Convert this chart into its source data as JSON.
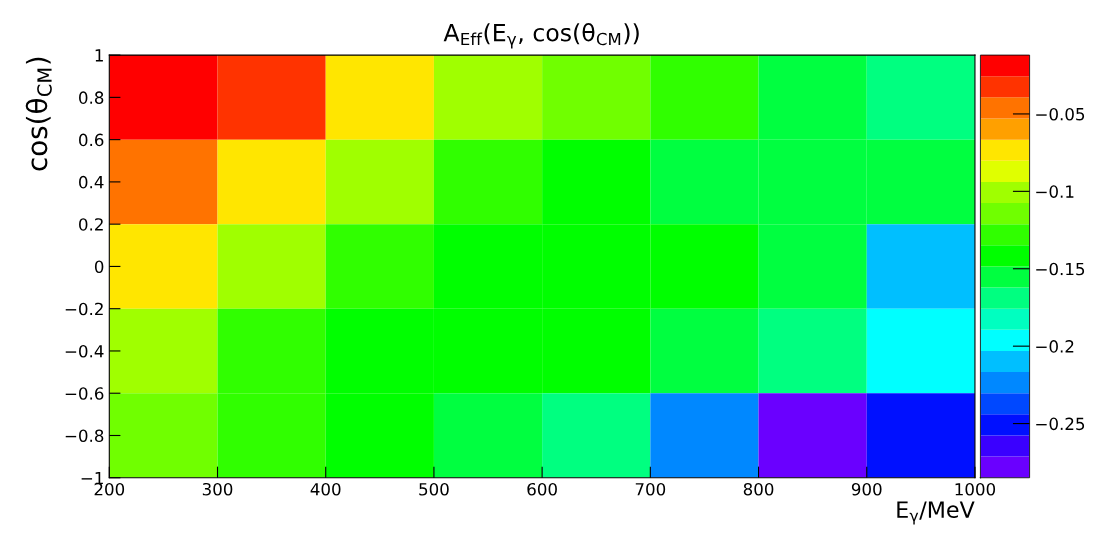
{
  "chart_data": {
    "type": "heatmap",
    "title": "A$_{Eff}$(E$_{γ}$, cos(θ$_{CM}$))",
    "xlabel": "E$_{γ}$/MeV",
    "ylabel": "cos(θ$_{CM}$)",
    "cells": [
      [
        -0.019,
        -0.032,
        -0.073,
        -0.101,
        -0.114,
        -0.128,
        -0.155,
        -0.169
      ],
      [
        -0.046,
        -0.073,
        -0.101,
        -0.128,
        -0.142,
        -0.155,
        -0.155,
        -0.155
      ],
      [
        -0.073,
        -0.101,
        -0.128,
        -0.142,
        -0.142,
        -0.142,
        -0.155,
        -0.21
      ],
      [
        -0.101,
        -0.128,
        -0.142,
        -0.142,
        -0.142,
        -0.155,
        -0.169,
        -0.196
      ],
      [
        -0.114,
        -0.128,
        -0.142,
        -0.155,
        -0.169,
        -0.224,
        -0.278,
        -0.251
      ]
    ],
    "clim": [
      -0.285,
      -0.012
    ],
    "cticks": [
      -0.25,
      -0.2,
      -0.15,
      -0.1,
      -0.05
    ],
    "xlim": [
      200,
      1000
    ],
    "ylim": [
      -1,
      1
    ],
    "xticks": [
      200,
      300,
      400,
      500,
      600,
      700,
      800,
      900,
      1000
    ],
    "yticks": [
      -1,
      -0.8,
      -0.6,
      -0.4,
      -0.2,
      0,
      0.2,
      0.4,
      0.6,
      0.8,
      1
    ],
    "grid": false
  }
}
